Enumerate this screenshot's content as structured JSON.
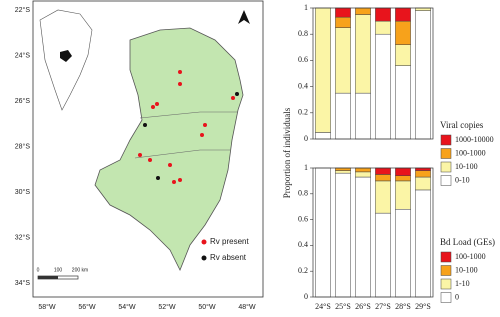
{
  "chart_data": [
    {
      "type": "stacked_bar",
      "ylabel": "Proportion of individuals",
      "legend_title": "Viral copies",
      "categories": [
        null,
        null,
        null,
        null,
        null,
        null
      ],
      "ylim": [
        0,
        1
      ],
      "yticks": [
        0,
        0.2,
        0.4,
        0.6,
        0.8,
        1
      ],
      "series": [
        {
          "name": "1000-10000",
          "color": "#e8141c",
          "values": [
            0,
            0.07,
            0,
            0.1,
            0.1,
            0
          ]
        },
        {
          "name": "100-1000",
          "color": "#f7a21b",
          "values": [
            0,
            0.08,
            0.05,
            0,
            0.18,
            0
          ]
        },
        {
          "name": "10-100",
          "color": "#fbf5a6",
          "values": [
            0.95,
            0.5,
            0.6,
            0.1,
            0.16,
            0.02
          ]
        },
        {
          "name": "0-10",
          "color": "#ffffff",
          "values": [
            0.05,
            0.35,
            0.35,
            0.8,
            0.56,
            0.98
          ]
        }
      ]
    },
    {
      "type": "stacked_bar",
      "legend_title": "Bd Load (GEs)",
      "categories": [
        "24°S",
        "25°S",
        "26°S",
        "27°S",
        "28°S",
        "29°S"
      ],
      "ylim": [
        0,
        1
      ],
      "yticks": [
        0,
        0.2,
        0.4,
        0.6,
        0.8,
        1
      ],
      "series": [
        {
          "name": "100-1000",
          "color": "#e8141c",
          "values": [
            0,
            0,
            0,
            0.05,
            0.06,
            0.02
          ]
        },
        {
          "name": "10-100",
          "color": "#f7a21b",
          "values": [
            0,
            0.02,
            0.03,
            0.05,
            0.04,
            0.05
          ]
        },
        {
          "name": "1-10",
          "color": "#fbf5a6",
          "values": [
            0,
            0.02,
            0.04,
            0.25,
            0.22,
            0.1
          ]
        },
        {
          "name": "0",
          "color": "#ffffff",
          "values": [
            1,
            0.96,
            0.93,
            0.65,
            0.68,
            0.83
          ]
        }
      ]
    }
  ],
  "map": {
    "lat_labels": [
      "22°S",
      "24°S",
      "26°S",
      "28°S",
      "30°S",
      "32°S",
      "34°S"
    ],
    "lon_labels": [
      "58°W",
      "56°W",
      "54°W",
      "52°W",
      "50°W",
      "48°W"
    ],
    "legend": [
      "Rv present",
      "Rv absent"
    ],
    "scale_labels": [
      "0",
      "100",
      "200 km"
    ]
  }
}
